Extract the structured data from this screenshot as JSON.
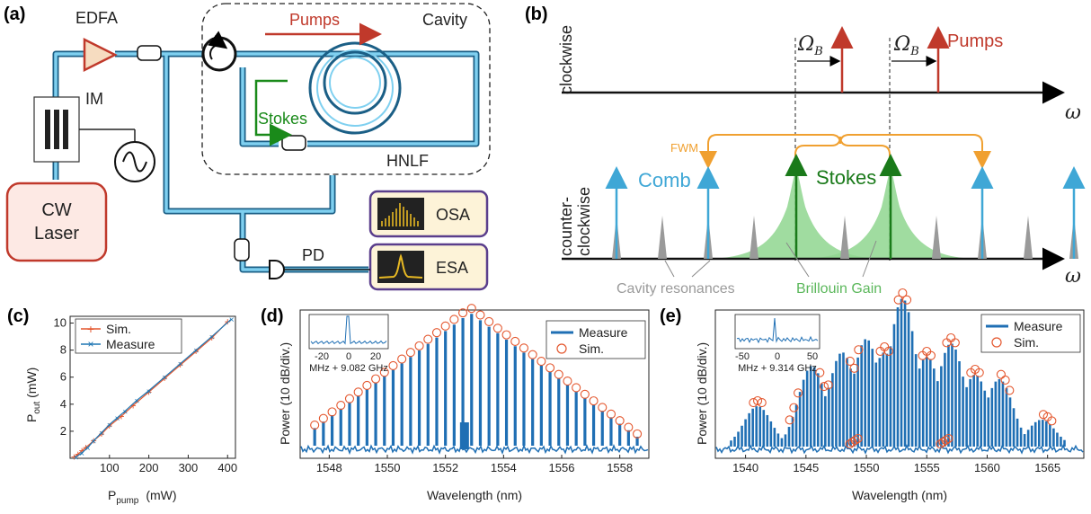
{
  "panel_a": {
    "label": "(a)",
    "edfa": "EDFA",
    "im": "IM",
    "laser_line1": "CW",
    "laser_line2": "Laser",
    "pumps": "Pumps",
    "cavity": "Cavity",
    "stokes": "Stokes",
    "hnlf": "HNLF",
    "osa": "OSA",
    "esa": "ESA",
    "pd": "PD",
    "colors": {
      "fiber": "#3fa7d6",
      "laser": "#c0392b",
      "pump": "#c0392b",
      "stokes": "#1a8a1a",
      "instrument": "#5a3e8c",
      "instrument_bg": "#fdf3d8",
      "osa_trace": "#e8b923"
    }
  },
  "panel_b": {
    "label": "(b)",
    "clockwise": "clockwise",
    "ccw_line1": "counter-",
    "ccw_line2": "clockwise",
    "omega_b": "Ω",
    "omega_b_sub": "B",
    "pumps": "Pumps",
    "fwm": "FWM",
    "comb": "Comb",
    "stokes": "Stokes",
    "cavity_resonances": "Cavity resonances",
    "brillouin_gain": "Brillouin Gain",
    "omega": "ω",
    "colors": {
      "pump": "#c0392b",
      "comb": "#3fa7d6",
      "stokes": "#1a7a1a",
      "gain": "#8fd68f",
      "fwm": "#f0a030",
      "resonance": "#999999"
    }
  },
  "panel_c": {
    "label": "(c)",
    "ylabel": "P",
    "ylabel_sub": "out",
    "ylabel_unit": " (mW)",
    "xlabel": "P",
    "xlabel_sub": "pump",
    "xlabel_unit": "(mW)",
    "legend": [
      "Sim.",
      "Measure"
    ]
  },
  "panel_d": {
    "label": "(d)",
    "ylabel": "Power (10 dB/div.)",
    "xlabel": "Wavelength (nm)",
    "legend": [
      "Measure",
      "Sim."
    ],
    "inset_xlabel": "MHz + 9.082 GHz",
    "inset_ticks": [
      "-20",
      "0",
      "20"
    ]
  },
  "panel_e": {
    "label": "(e)",
    "ylabel": "Power (10 dB/div.)",
    "xlabel": "Wavelength (nm)",
    "legend": [
      "Measure",
      "Sim."
    ],
    "inset_xlabel": "MHz + 9.314 GHz",
    "inset_ticks": [
      "-50",
      "0",
      "50"
    ]
  },
  "chart_data": [
    {
      "type": "line",
      "xlim": [
        0,
        420
      ],
      "ylim": [
        0,
        10.5
      ],
      "xticks": [
        100,
        200,
        300,
        400
      ],
      "yticks": [
        2,
        4,
        6,
        8,
        10
      ],
      "series": [
        {
          "name": "Sim.",
          "color": "#e4572e",
          "x": [
            10,
            20,
            30,
            40,
            60,
            80,
            100,
            130,
            160,
            200,
            240,
            280,
            320,
            360,
            400
          ],
          "y": [
            0.1,
            0.3,
            0.55,
            0.8,
            1.3,
            1.8,
            2.4,
            3.1,
            3.9,
            4.9,
            5.9,
            6.9,
            7.9,
            8.9,
            10.1
          ]
        },
        {
          "name": "Measure",
          "color": "#1f77b4",
          "x": [
            15,
            30,
            45,
            60,
            80,
            100,
            120,
            140,
            170,
            200,
            240,
            280,
            320,
            360,
            410
          ],
          "y": [
            0.1,
            0.4,
            0.8,
            1.3,
            1.9,
            2.5,
            3.0,
            3.5,
            4.3,
            5.0,
            6.0,
            7.0,
            8.0,
            9.0,
            10.3
          ]
        }
      ]
    },
    {
      "type": "bar",
      "xlim": [
        1547,
        1559
      ],
      "xticks": [
        1548,
        1550,
        1552,
        1554,
        1556,
        1558
      ],
      "line_spacing_nm": 0.3,
      "center_nm": 1552.85,
      "measure_color": "#1f6fb4",
      "sim_color": "#e4572e",
      "envelope_db_per_nm": 7.4
    },
    {
      "type": "bar",
      "xlim": [
        1537.5,
        1568
      ],
      "xticks": [
        1540,
        1545,
        1550,
        1555,
        1560,
        1565
      ],
      "peaks_nm": [
        1541,
        1544,
        1546.5,
        1549,
        1551.5,
        1553,
        1555,
        1557,
        1559,
        1561.5,
        1565
      ],
      "measure_color": "#1f6fb4",
      "sim_color": "#e4572e"
    }
  ]
}
